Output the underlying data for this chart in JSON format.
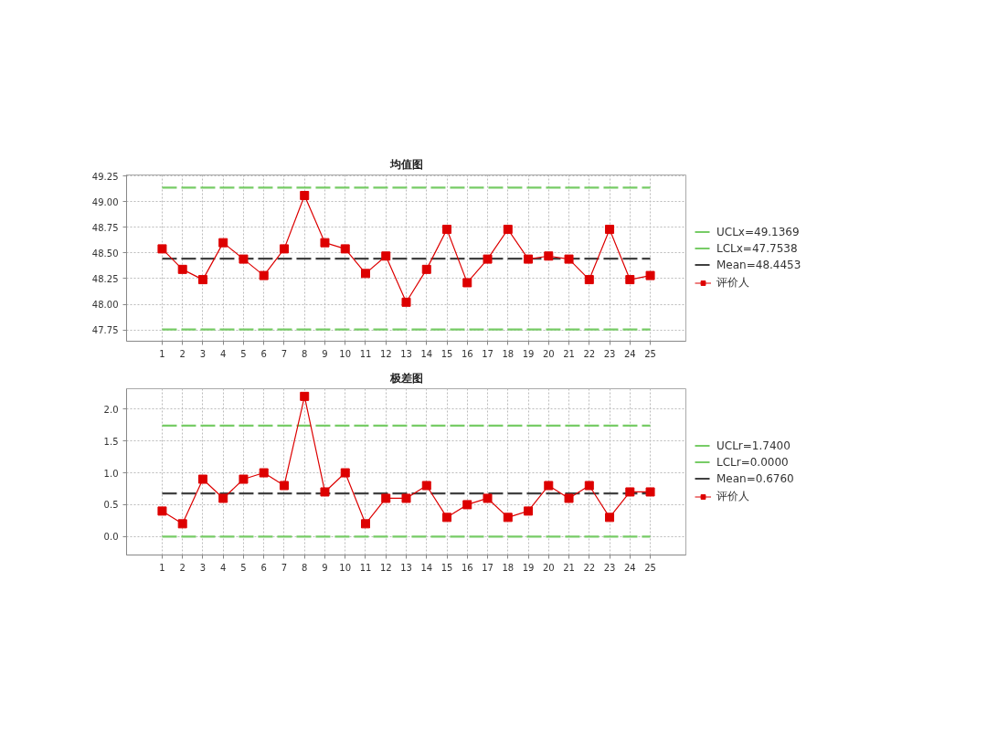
{
  "chart_data": [
    {
      "type": "line",
      "title": "均值图",
      "xlim": [
        -0.75,
        26.75
      ],
      "xticks": [
        1,
        2,
        3,
        4,
        5,
        6,
        7,
        8,
        9,
        10,
        11,
        12,
        13,
        14,
        15,
        16,
        17,
        18,
        19,
        20,
        21,
        22,
        23,
        24,
        25
      ],
      "ylim": [
        47.64,
        49.26
      ],
      "yticks": [
        47.75,
        {
          "value": 48,
          "label": "48.00"
        },
        48.25,
        {
          "value": 48.5,
          "label": "48.50"
        },
        48.75,
        {
          "value": 49,
          "label": "49.00"
        },
        49.25
      ],
      "grid": true,
      "legend": "right",
      "series": [
        {
          "name": "UCLx=49.1369",
          "color": "#77cc66",
          "x": [
            1,
            25
          ],
          "values": [
            49.1369,
            49.1369
          ],
          "line_style": "dashed",
          "marker": "none"
        },
        {
          "name": "LCLx=47.7538",
          "color": "#77cc66",
          "x": [
            1,
            25
          ],
          "values": [
            47.7538,
            47.7538
          ],
          "line_style": "dashed",
          "marker": "none"
        },
        {
          "name": "Mean=48.4453",
          "color": "#404040",
          "x": [
            1,
            25
          ],
          "values": [
            48.4453,
            48.4453
          ],
          "line_style": "dashed",
          "marker": "none"
        },
        {
          "name": "评价人",
          "color": "#dd0000",
          "x": [
            1,
            2,
            3,
            4,
            5,
            6,
            7,
            8,
            9,
            10,
            11,
            12,
            13,
            14,
            15,
            16,
            17,
            18,
            19,
            20,
            21,
            22,
            23,
            24,
            25
          ],
          "values": [
            48.54,
            48.34,
            48.24,
            48.6,
            48.44,
            48.28,
            48.54,
            49.06,
            48.6,
            48.54,
            48.3,
            48.47,
            48.02,
            48.34,
            48.73,
            48.21,
            48.44,
            48.73,
            48.44,
            48.47,
            48.44,
            48.24,
            48.73,
            48.24,
            48.28
          ],
          "line_style": "solid",
          "marker": "square"
        }
      ]
    },
    {
      "type": "line",
      "title": "极差图",
      "xlim": [
        -0.75,
        26.75
      ],
      "xticks": [
        1,
        2,
        3,
        4,
        5,
        6,
        7,
        8,
        9,
        10,
        11,
        12,
        13,
        14,
        15,
        16,
        17,
        18,
        19,
        20,
        21,
        22,
        23,
        24,
        25
      ],
      "ylim": [
        -0.29,
        2.32
      ],
      "yticks": [
        {
          "value": 0,
          "label": "0.0"
        },
        0.5,
        {
          "value": 1,
          "label": "1.0"
        },
        1.5,
        {
          "value": 2,
          "label": "2.0"
        }
      ],
      "grid": true,
      "legend": "right",
      "series": [
        {
          "name": "UCLr=1.7400",
          "color": "#77cc66",
          "x": [
            1,
            25
          ],
          "values": [
            1.74,
            1.74
          ],
          "line_style": "dashed",
          "marker": "none"
        },
        {
          "name": "LCLr=0.0000",
          "color": "#77cc66",
          "x": [
            1,
            25
          ],
          "values": [
            0,
            0
          ],
          "line_style": "dashed",
          "marker": "none"
        },
        {
          "name": "Mean=0.6760",
          "color": "#404040",
          "x": [
            1,
            25
          ],
          "values": [
            0.676,
            0.676
          ],
          "line_style": "dashed",
          "marker": "none"
        },
        {
          "name": "评价人",
          "color": "#dd0000",
          "x": [
            1,
            2,
            3,
            4,
            5,
            6,
            7,
            8,
            9,
            10,
            11,
            12,
            13,
            14,
            15,
            16,
            17,
            18,
            19,
            20,
            21,
            22,
            23,
            24,
            25
          ],
          "values": [
            0.4,
            0.2,
            0.9,
            0.6,
            0.9,
            1.0,
            0.8,
            2.2,
            0.7,
            1.0,
            0.2,
            0.6,
            0.6,
            0.8,
            0.3,
            0.5,
            0.6,
            0.3,
            0.4,
            0.8,
            0.6,
            0.8,
            0.3,
            0.7,
            0.7
          ],
          "line_style": "solid",
          "marker": "square"
        }
      ]
    }
  ]
}
